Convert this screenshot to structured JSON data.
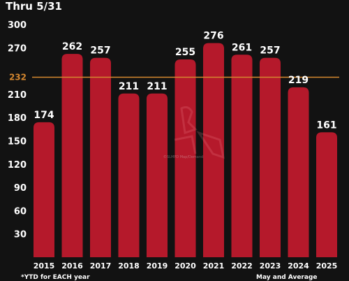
{
  "header": {
    "title": "Thru 5/31"
  },
  "footnotes": {
    "left": "*YTD for EACH year",
    "right": "May and Average"
  },
  "watermark": {
    "text": "©SLMPD Map/Demand"
  },
  "colors": {
    "background": "#121212",
    "bar": "#b5192b",
    "average_line": "#d4872f",
    "text": "#ffffff"
  },
  "chart_data": {
    "type": "bar",
    "title": "Thru 5/31",
    "xlabel": "",
    "ylabel": "",
    "categories": [
      "2015",
      "2016",
      "2017",
      "2018",
      "2019",
      "2020",
      "2021",
      "2022",
      "2023",
      "2024",
      "2025"
    ],
    "values": [
      174,
      262,
      257,
      211,
      211,
      255,
      276,
      261,
      257,
      219,
      161
    ],
    "ylim": [
      0,
      300
    ],
    "yticks": [
      30,
      60,
      90,
      120,
      150,
      180,
      210,
      270,
      300
    ],
    "reference_line": {
      "value": 232,
      "label": "232"
    },
    "grid": false
  }
}
